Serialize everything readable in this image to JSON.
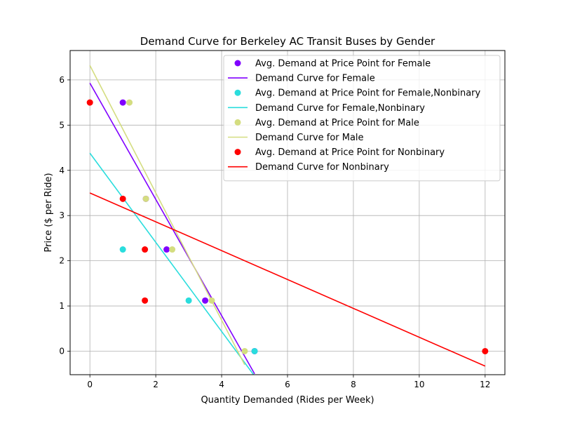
{
  "chart_data": {
    "type": "scatter",
    "title": "Demand Curve for Berkeley AC Transit Buses by Gender",
    "xlabel": "Quantity Demanded (Rides per Week)",
    "ylabel": "Price ($ per Ride)",
    "xlim": [
      -0.6,
      12.6
    ],
    "ylim": [
      -0.52,
      6.65
    ],
    "xticks": [
      0,
      2,
      4,
      6,
      8,
      10,
      12
    ],
    "yticks": [
      0,
      1,
      2,
      3,
      4,
      5,
      6
    ],
    "grid": true,
    "legend_position": "upper right",
    "series": [
      {
        "label_points": "Avg. Demand at Price Point for Female",
        "label_line": "Demand Curve for Female",
        "color": "#8000ff",
        "points": [
          [
            1.0,
            5.5
          ],
          [
            1.7,
            3.37
          ],
          [
            2.33,
            2.25
          ],
          [
            3.5,
            1.12
          ],
          [
            5.0,
            0.0
          ]
        ],
        "line": [
          [
            0,
            5.93
          ],
          [
            5.0,
            -0.5
          ]
        ]
      },
      {
        "label_points": "Avg. Demand at Price Point for Female,Nonbinary",
        "label_line": "Demand Curve for Female,Nonbinary",
        "color": "#2adddd",
        "points": [
          [
            1.0,
            2.25
          ],
          [
            3.0,
            1.12
          ],
          [
            5.0,
            0.0
          ]
        ],
        "line": [
          [
            0,
            4.38
          ],
          [
            5.0,
            -0.55
          ]
        ]
      },
      {
        "label_points": "Avg. Demand at Price Point for Male",
        "label_line": "Demand Curve for Male",
        "color": "#d4dd80",
        "points": [
          [
            1.2,
            5.5
          ],
          [
            1.7,
            3.37
          ],
          [
            2.5,
            2.25
          ],
          [
            3.7,
            1.12
          ],
          [
            4.7,
            0.0
          ]
        ],
        "line": [
          [
            0,
            6.32
          ],
          [
            4.7,
            -0.3
          ]
        ]
      },
      {
        "label_points": "Avg. Demand at Price Point for Nonbinary",
        "label_line": "Demand Curve for Nonbinary",
        "color": "#ff0000",
        "points": [
          [
            0.0,
            5.5
          ],
          [
            1.0,
            3.37
          ],
          [
            1.67,
            2.25
          ],
          [
            1.67,
            1.12
          ],
          [
            12.0,
            0.0
          ]
        ],
        "line": [
          [
            0,
            3.5
          ],
          [
            12.0,
            -0.33
          ]
        ]
      }
    ]
  }
}
